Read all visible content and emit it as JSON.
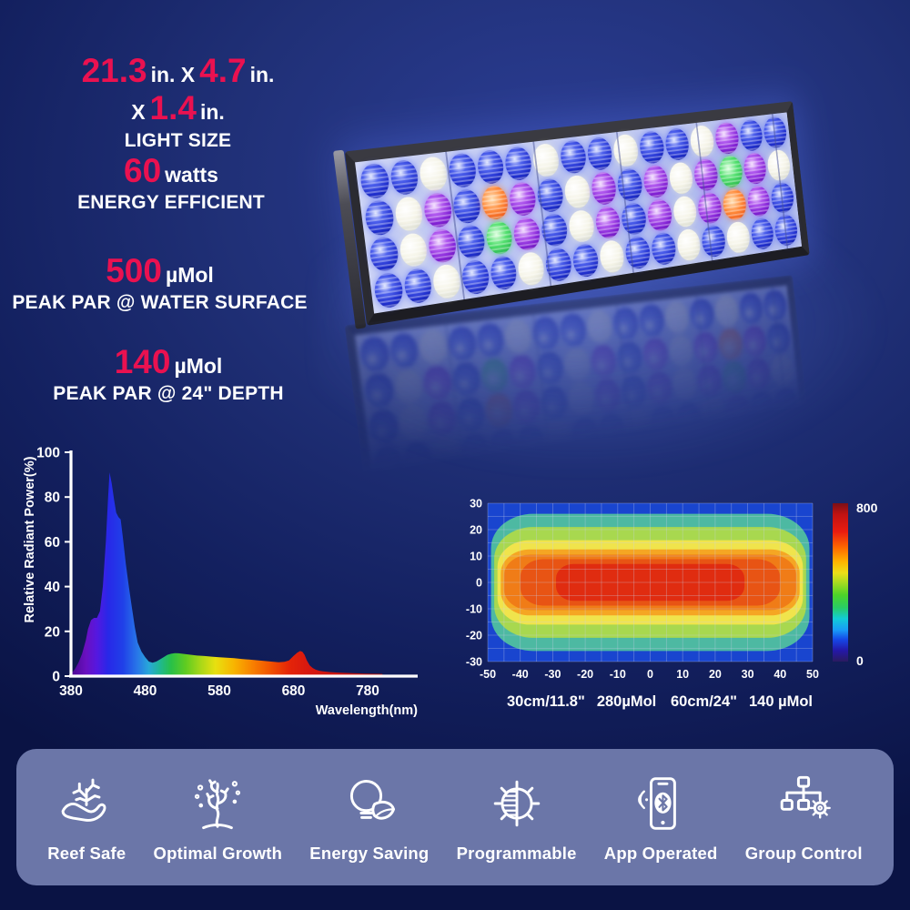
{
  "colors": {
    "accent_red": "#ea1150",
    "background_deep": "#0a1344",
    "background_light": "#2c3e96",
    "banner": "#6b76a8",
    "text": "#ffffff"
  },
  "specs": {
    "size": {
      "width_in": "21.3",
      "sep1": "in. X",
      "depth_in": "4.7",
      "sep2": "in. X",
      "height_in": "1.4",
      "unit": "in.",
      "caption": "LIGHT SIZE"
    },
    "power": {
      "value": "60",
      "unit": "watts",
      "caption": "ENERGY EFFICIENT"
    },
    "par_surface": {
      "value": "500",
      "unit": "µMol",
      "caption": "PEAK PAR @ WATER SURFACE"
    },
    "par_depth": {
      "value": "140",
      "unit": "µMol",
      "caption": "PEAK PAR @ 24\" DEPTH"
    }
  },
  "hero": {
    "led_rows": [
      [
        "blue",
        "blue",
        "white",
        "blue",
        "blue",
        "blue",
        "white",
        "blue",
        "blue",
        "white",
        "blue",
        "blue",
        "white",
        "violet",
        "blue",
        "blue"
      ],
      [
        "blue",
        "white",
        "violet",
        "blue",
        "orange",
        "violet",
        "blue",
        "white",
        "violet",
        "blue",
        "violet",
        "white",
        "violet",
        "green",
        "violet",
        "white"
      ],
      [
        "blue",
        "white",
        "violet",
        "blue",
        "green",
        "violet",
        "blue",
        "white",
        "violet",
        "blue",
        "violet",
        "white",
        "violet",
        "orange",
        "violet",
        "blue"
      ],
      [
        "blue",
        "blue",
        "white",
        "blue",
        "blue",
        "white",
        "blue",
        "blue",
        "white",
        "blue",
        "blue",
        "white",
        "blue",
        "white",
        "blue",
        "blue"
      ]
    ]
  },
  "chart_data": [
    {
      "type": "area",
      "xlabel": "Wavelength(nm)",
      "ylabel": "Relative Radiant Power(%)",
      "xlim": [
        380,
        820
      ],
      "ylim": [
        0,
        100
      ],
      "x_ticks": [
        380,
        480,
        580,
        680,
        780
      ],
      "y_ticks": [
        0,
        20,
        40,
        60,
        80,
        100
      ],
      "x": [
        380,
        385,
        390,
        395,
        400,
        403,
        407,
        411,
        415,
        419,
        423,
        427,
        430,
        432,
        435,
        438,
        441,
        444,
        447,
        450,
        454,
        458,
        462,
        466,
        470,
        475,
        480,
        485,
        490,
        495,
        500,
        505,
        510,
        515,
        520,
        525,
        530,
        540,
        550,
        560,
        570,
        580,
        590,
        600,
        610,
        620,
        630,
        640,
        650,
        660,
        668,
        674,
        680,
        685,
        689,
        692,
        695,
        698,
        702,
        706,
        710,
        715,
        720,
        730,
        740,
        760,
        780,
        800
      ],
      "y": [
        1,
        3,
        6,
        10,
        16,
        21,
        25,
        26,
        26,
        29,
        40,
        60,
        80,
        91,
        86,
        79,
        73,
        71,
        70,
        62,
        50,
        40,
        31,
        22,
        15,
        11,
        8.5,
        6.5,
        6,
        6.5,
        7.5,
        8.5,
        9.5,
        10,
        10.3,
        10.2,
        10,
        9.6,
        9.2,
        9,
        8.7,
        8.4,
        8.2,
        8,
        7.7,
        7.4,
        7.1,
        6.8,
        6.5,
        6.2,
        6.4,
        7,
        9,
        10.5,
        11.2,
        10.9,
        9.5,
        7,
        4.8,
        3.6,
        2.9,
        2.4,
        2.1,
        1.8,
        1.6,
        1.3,
        1.1,
        1
      ],
      "gradient": [
        {
          "o": 0,
          "c": "#4a0890"
        },
        {
          "o": 0.048,
          "c": "#6a10c0"
        },
        {
          "o": 0.083,
          "c": "#5518e0"
        },
        {
          "o": 0.119,
          "c": "#2828e8"
        },
        {
          "o": 0.167,
          "c": "#2040e8"
        },
        {
          "o": 0.214,
          "c": "#2878e8"
        },
        {
          "o": 0.25,
          "c": "#28a8d8"
        },
        {
          "o": 0.286,
          "c": "#20b890"
        },
        {
          "o": 0.321,
          "c": "#28c048"
        },
        {
          "o": 0.369,
          "c": "#60cc20"
        },
        {
          "o": 0.417,
          "c": "#aad818"
        },
        {
          "o": 0.464,
          "c": "#e8e010"
        },
        {
          "o": 0.524,
          "c": "#f8b400"
        },
        {
          "o": 0.583,
          "c": "#f88000"
        },
        {
          "o": 0.643,
          "c": "#f05000"
        },
        {
          "o": 0.702,
          "c": "#e42408"
        },
        {
          "o": 0.762,
          "c": "#d81810"
        },
        {
          "o": 0.905,
          "c": "#c01410"
        },
        {
          "o": 1,
          "c": "#a81410"
        }
      ]
    },
    {
      "type": "heatmap",
      "xlim": [
        -50,
        50
      ],
      "ylim": [
        -30,
        30
      ],
      "x_ticks": [
        -50,
        -40,
        -30,
        -20,
        -10,
        0,
        10,
        20,
        30,
        40,
        50
      ],
      "y_ticks": [
        30,
        20,
        10,
        0,
        -10,
        -20,
        -30
      ],
      "grid_step": 5,
      "colorbar": {
        "min": 0,
        "max": 800,
        "gradient": [
          {
            "o": 0,
            "c": "#2a1a60"
          },
          {
            "o": 0.07,
            "c": "#2418a8"
          },
          {
            "o": 0.14,
            "c": "#1648e8"
          },
          {
            "o": 0.2,
            "c": "#189cf8"
          },
          {
            "o": 0.27,
            "c": "#12ccd8"
          },
          {
            "o": 0.34,
            "c": "#28cc66"
          },
          {
            "o": 0.42,
            "c": "#4cd428"
          },
          {
            "o": 0.5,
            "c": "#a8dc20"
          },
          {
            "o": 0.56,
            "c": "#ecdf18"
          },
          {
            "o": 0.63,
            "c": "#ffb400"
          },
          {
            "o": 0.72,
            "c": "#ff6800"
          },
          {
            "o": 0.82,
            "c": "#ea1c10"
          },
          {
            "o": 0.93,
            "c": "#c01212"
          },
          {
            "o": 1,
            "c": "#7a1016"
          }
        ]
      },
      "rings": [
        {
          "level": "<150",
          "color": "#1945cf",
          "x": [
            -50,
            50
          ],
          "y": [
            -30,
            30
          ],
          "r": 0
        },
        {
          "level": "200",
          "color": "#4db9a2",
          "x": [
            -49,
            49
          ],
          "y": [
            -26,
            26
          ],
          "r": 13
        },
        {
          "level": "300",
          "color": "#a8d84f",
          "x": [
            -48,
            48
          ],
          "y": [
            -21,
            21
          ],
          "r": 12
        },
        {
          "level": "400",
          "color": "#f0e44c",
          "x": [
            -47,
            47
          ],
          "y": [
            -16,
            16
          ],
          "r": 10
        },
        {
          "level": "500",
          "color": "#f5a623",
          "x": [
            -46,
            46
          ],
          "y": [
            -12.5,
            12.5
          ],
          "r": 9
        },
        {
          "level": "600",
          "color": "#f07c17",
          "x": [
            -45,
            45
          ],
          "y": [
            -10.5,
            10.5
          ],
          "r": 8
        },
        {
          "level": "700",
          "color": "#e85414",
          "x": [
            -40,
            40
          ],
          "y": [
            -8.8,
            8.8
          ],
          "r": 7
        },
        {
          "level": "800",
          "color": "#e02c10",
          "x": [
            -29,
            29
          ],
          "y": [
            -7,
            7
          ],
          "r": 5.5
        }
      ],
      "annotations": [
        {
          "depth": "30cm/11.8\"",
          "par": "280µMol"
        },
        {
          "depth": "60cm/24\"",
          "par": "140 µMol"
        }
      ]
    }
  ],
  "features": [
    {
      "label": "Reef Safe",
      "icon": "hand-coral-icon"
    },
    {
      "label": "Optimal Growth",
      "icon": "coral-bubbles-icon"
    },
    {
      "label": "Energy Saving",
      "icon": "bulb-leaf-icon"
    },
    {
      "label": "Programmable",
      "icon": "dimmer-sun-icon"
    },
    {
      "label": "App Operated",
      "icon": "phone-bluetooth-icon"
    },
    {
      "label": "Group Control",
      "icon": "network-gear-icon"
    }
  ]
}
